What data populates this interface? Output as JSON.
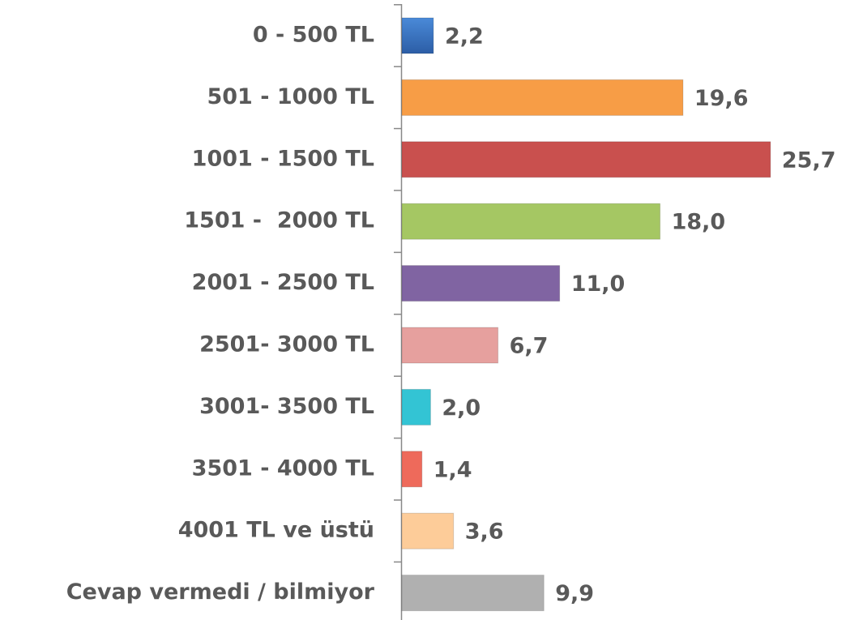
{
  "chart_data": {
    "type": "bar",
    "orientation": "horizontal",
    "categories": [
      "0 - 500 TL",
      "501 - 1000 TL",
      "1001 - 1500 TL",
      "1501 -  2000 TL",
      "2001 - 2500 TL",
      "2501- 3000 TL",
      "3001- 3500 TL",
      "3501 - 4000 TL",
      "4001 TL ve üstü",
      "Cevap vermedi / bilmiyor"
    ],
    "values": [
      2.2,
      19.6,
      25.7,
      18.0,
      11.0,
      6.7,
      2.0,
      1.4,
      3.6,
      9.9
    ],
    "value_labels": [
      "2,2",
      "19,6",
      "25,7",
      "18,0",
      "11,0",
      "6,7",
      "2,0",
      "1,4",
      "3,6",
      "9,9"
    ],
    "colors": [
      "#3a75c4",
      "#f79d46",
      "#c9504e",
      "#a5c763",
      "#8064a2",
      "#e6a09e",
      "#33c4d4",
      "#ee6a5b",
      "#fdcc99",
      "#b0b0b0"
    ]
  }
}
